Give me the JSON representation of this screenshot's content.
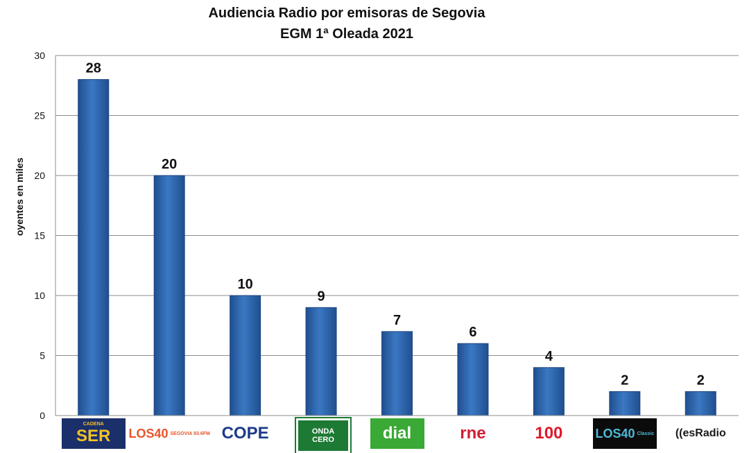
{
  "chart_data": {
    "type": "bar",
    "title": "Audiencia Radio por emisoras de Segovia",
    "subtitle": "EGM 1ª Oleada 2021",
    "ylabel": "oyentes en miles",
    "xlabel": "",
    "ylim": [
      0,
      30
    ],
    "yticks": [
      "0",
      "5",
      "10",
      "15",
      "20",
      "25",
      "30"
    ],
    "categories": [
      "Cadena SER",
      "Los 40 Segovia",
      "COPE",
      "Onda Cero",
      "Dial",
      "RNE",
      "Cadena 100",
      "Los 40 Classic",
      "esRadio"
    ],
    "values": [
      28,
      20,
      10,
      9,
      7,
      6,
      4,
      2,
      2
    ],
    "grid": true,
    "bar_color": "#3b78c3"
  },
  "logos": [
    {
      "text": "SER",
      "small": "CADENA",
      "bg": "#1b2f6b",
      "fg": "#f3c325",
      "icon": "cadena-ser-logo"
    },
    {
      "text": "LOS40",
      "small": "SEGOVIA 93.6FM",
      "bg": "#ffffff",
      "fg": "#e8552a",
      "icon": "los40-segovia-logo"
    },
    {
      "text": "COPE",
      "small": "",
      "bg": "#ffffff",
      "fg": "#1d3a8a",
      "icon": "cope-logo"
    },
    {
      "text": "ONDA",
      "small": "CERO",
      "bg": "#1d7a34",
      "fg": "#ffffff",
      "icon": "onda-cero-logo"
    },
    {
      "text": "dial",
      "small": "",
      "bg": "#3aa935",
      "fg": "#ffffff",
      "icon": "dial-logo"
    },
    {
      "text": "rne",
      "small": "",
      "bg": "#ffffff",
      "fg": "#d11d35",
      "icon": "rne-logo"
    },
    {
      "text": "100",
      "small": "",
      "bg": "#ffffff",
      "fg": "#e2172a",
      "icon": "cadena-100-logo"
    },
    {
      "text": "LOS40",
      "small": "Classic",
      "bg": "#0b0b0b",
      "fg": "#4fb9d6",
      "icon": "los40-classic-logo"
    },
    {
      "text": "((esRadio",
      "small": "",
      "bg": "#ffffff",
      "fg": "#1a1a1a",
      "icon": "esradio-logo"
    }
  ]
}
